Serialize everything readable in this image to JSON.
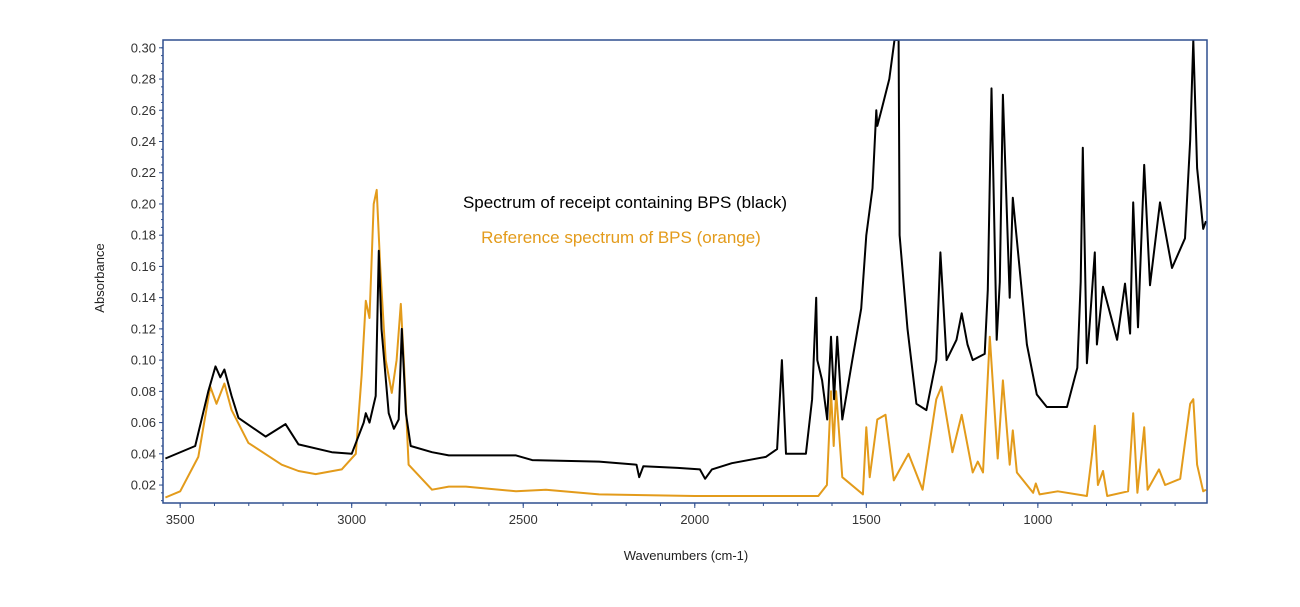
{
  "chart_data": {
    "type": "line",
    "title": "",
    "xlabel": "Wavenumbers (cm-1)",
    "ylabel": "Absorbance",
    "xlim": [
      3550,
      507
    ],
    "ylim": [
      0.0085,
      0.305
    ],
    "x_reversed": true,
    "grid": false,
    "xticks": [
      3500,
      3000,
      2500,
      2000,
      1500,
      1000
    ],
    "yticks": [
      0.02,
      0.04,
      0.06,
      0.08,
      0.1,
      0.12,
      0.14,
      0.16,
      0.18,
      0.2,
      0.22,
      0.24,
      0.26,
      0.28,
      0.3
    ],
    "ytick_labels": [
      "0.02",
      "0.04",
      "0.06",
      "0.08",
      "0.10",
      "0.12",
      "0.14",
      "0.16",
      "0.18",
      "0.20",
      "0.22",
      "0.24",
      "0.26",
      "0.28",
      "0.30"
    ],
    "frame_color": "#2f4f8f",
    "annotations": [
      {
        "text": "Spectrum of receipt containing BPS (black)",
        "color": "#000000"
      },
      {
        "text": "Reference spectrum of BPS (orange)",
        "color": "#e39b1b"
      }
    ],
    "series": [
      {
        "color": "#000000",
        "points": [
          [
            3543,
            0.037
          ],
          [
            3456,
            0.045
          ],
          [
            3418,
            0.08
          ],
          [
            3397,
            0.096
          ],
          [
            3383,
            0.089
          ],
          [
            3371,
            0.094
          ],
          [
            3350,
            0.077
          ],
          [
            3330,
            0.063
          ],
          [
            3251,
            0.051
          ],
          [
            3193,
            0.059
          ],
          [
            3155,
            0.046
          ],
          [
            3058,
            0.041
          ],
          [
            3000,
            0.04
          ],
          [
            2965,
            0.06
          ],
          [
            2959,
            0.066
          ],
          [
            2948,
            0.06
          ],
          [
            2930,
            0.077
          ],
          [
            2921,
            0.17
          ],
          [
            2913,
            0.12
          ],
          [
            2892,
            0.066
          ],
          [
            2877,
            0.056
          ],
          [
            2863,
            0.062
          ],
          [
            2854,
            0.12
          ],
          [
            2842,
            0.066
          ],
          [
            2828,
            0.045
          ],
          [
            2766,
            0.041
          ],
          [
            2717,
            0.039
          ],
          [
            2521,
            0.039
          ],
          [
            2474,
            0.036
          ],
          [
            2279,
            0.035
          ],
          [
            2170,
            0.033
          ],
          [
            2162,
            0.025
          ],
          [
            2150,
            0.032
          ],
          [
            2050,
            0.031
          ],
          [
            1985,
            0.03
          ],
          [
            1970,
            0.024
          ],
          [
            1950,
            0.03
          ],
          [
            1892,
            0.034
          ],
          [
            1793,
            0.038
          ],
          [
            1760,
            0.043
          ],
          [
            1746,
            0.1
          ],
          [
            1734,
            0.04
          ],
          [
            1676,
            0.04
          ],
          [
            1658,
            0.075
          ],
          [
            1646,
            0.14
          ],
          [
            1643,
            0.1
          ],
          [
            1629,
            0.087
          ],
          [
            1614,
            0.062
          ],
          [
            1603,
            0.115
          ],
          [
            1594,
            0.075
          ],
          [
            1585,
            0.115
          ],
          [
            1570,
            0.062
          ],
          [
            1541,
            0.1
          ],
          [
            1515,
            0.133
          ],
          [
            1500,
            0.18
          ],
          [
            1482,
            0.21
          ],
          [
            1471,
            0.26
          ],
          [
            1468,
            0.25
          ],
          [
            1456,
            0.26
          ],
          [
            1433,
            0.28
          ],
          [
            1418,
            0.305
          ],
          [
            1406,
            0.305
          ],
          [
            1403,
            0.18
          ],
          [
            1380,
            0.12
          ],
          [
            1354,
            0.072
          ],
          [
            1325,
            0.068
          ],
          [
            1296,
            0.1
          ],
          [
            1284,
            0.169
          ],
          [
            1266,
            0.1
          ],
          [
            1237,
            0.113
          ],
          [
            1222,
            0.13
          ],
          [
            1205,
            0.11
          ],
          [
            1190,
            0.1
          ],
          [
            1155,
            0.104
          ],
          [
            1146,
            0.145
          ],
          [
            1135,
            0.274
          ],
          [
            1120,
            0.113
          ],
          [
            1111,
            0.15
          ],
          [
            1102,
            0.27
          ],
          [
            1082,
            0.14
          ],
          [
            1073,
            0.204
          ],
          [
            1032,
            0.11
          ],
          [
            1003,
            0.078
          ],
          [
            974,
            0.07
          ],
          [
            915,
            0.07
          ],
          [
            885,
            0.095
          ],
          [
            875,
            0.15
          ],
          [
            869,
            0.236
          ],
          [
            857,
            0.098
          ],
          [
            834,
            0.169
          ],
          [
            828,
            0.11
          ],
          [
            810,
            0.147
          ],
          [
            769,
            0.113
          ],
          [
            746,
            0.149
          ],
          [
            731,
            0.117
          ],
          [
            722,
            0.201
          ],
          [
            708,
            0.121
          ],
          [
            690,
            0.225
          ],
          [
            673,
            0.148
          ],
          [
            644,
            0.201
          ],
          [
            609,
            0.159
          ],
          [
            571,
            0.178
          ],
          [
            556,
            0.241
          ],
          [
            547,
            0.305
          ],
          [
            536,
            0.223
          ],
          [
            518,
            0.184
          ],
          [
            510,
            0.189
          ]
        ]
      },
      {
        "color": "#e39b1b",
        "points": [
          [
            3543,
            0.012
          ],
          [
            3500,
            0.016
          ],
          [
            3447,
            0.038
          ],
          [
            3412,
            0.083
          ],
          [
            3394,
            0.072
          ],
          [
            3371,
            0.085
          ],
          [
            3350,
            0.068
          ],
          [
            3301,
            0.047
          ],
          [
            3204,
            0.033
          ],
          [
            3155,
            0.029
          ],
          [
            3105,
            0.027
          ],
          [
            3029,
            0.03
          ],
          [
            2988,
            0.04
          ],
          [
            2971,
            0.09
          ],
          [
            2959,
            0.138
          ],
          [
            2948,
            0.127
          ],
          [
            2936,
            0.2
          ],
          [
            2927,
            0.209
          ],
          [
            2917,
            0.16
          ],
          [
            2901,
            0.1
          ],
          [
            2883,
            0.079
          ],
          [
            2869,
            0.1
          ],
          [
            2857,
            0.136
          ],
          [
            2848,
            0.1
          ],
          [
            2834,
            0.033
          ],
          [
            2766,
            0.017
          ],
          [
            2717,
            0.019
          ],
          [
            2667,
            0.019
          ],
          [
            2521,
            0.016
          ],
          [
            2434,
            0.017
          ],
          [
            2279,
            0.014
          ],
          [
            2000,
            0.013
          ],
          [
            1700,
            0.013
          ],
          [
            1640,
            0.013
          ],
          [
            1615,
            0.02
          ],
          [
            1603,
            0.08
          ],
          [
            1595,
            0.045
          ],
          [
            1588,
            0.08
          ],
          [
            1570,
            0.025
          ],
          [
            1510,
            0.014
          ],
          [
            1500,
            0.057
          ],
          [
            1490,
            0.025
          ],
          [
            1468,
            0.062
          ],
          [
            1444,
            0.065
          ],
          [
            1420,
            0.023
          ],
          [
            1377,
            0.04
          ],
          [
            1336,
            0.017
          ],
          [
            1296,
            0.075
          ],
          [
            1281,
            0.083
          ],
          [
            1249,
            0.041
          ],
          [
            1222,
            0.065
          ],
          [
            1190,
            0.028
          ],
          [
            1175,
            0.035
          ],
          [
            1160,
            0.028
          ],
          [
            1140,
            0.115
          ],
          [
            1117,
            0.037
          ],
          [
            1102,
            0.087
          ],
          [
            1082,
            0.033
          ],
          [
            1073,
            0.055
          ],
          [
            1061,
            0.028
          ],
          [
            1014,
            0.015
          ],
          [
            1006,
            0.021
          ],
          [
            995,
            0.014
          ],
          [
            942,
            0.016
          ],
          [
            857,
            0.013
          ],
          [
            842,
            0.04
          ],
          [
            834,
            0.058
          ],
          [
            825,
            0.02
          ],
          [
            810,
            0.029
          ],
          [
            798,
            0.013
          ],
          [
            737,
            0.016
          ],
          [
            722,
            0.066
          ],
          [
            710,
            0.015
          ],
          [
            690,
            0.057
          ],
          [
            680,
            0.017
          ],
          [
            647,
            0.03
          ],
          [
            629,
            0.02
          ],
          [
            585,
            0.024
          ],
          [
            556,
            0.072
          ],
          [
            547,
            0.075
          ],
          [
            536,
            0.033
          ],
          [
            518,
            0.016
          ],
          [
            510,
            0.017
          ]
        ]
      }
    ]
  }
}
